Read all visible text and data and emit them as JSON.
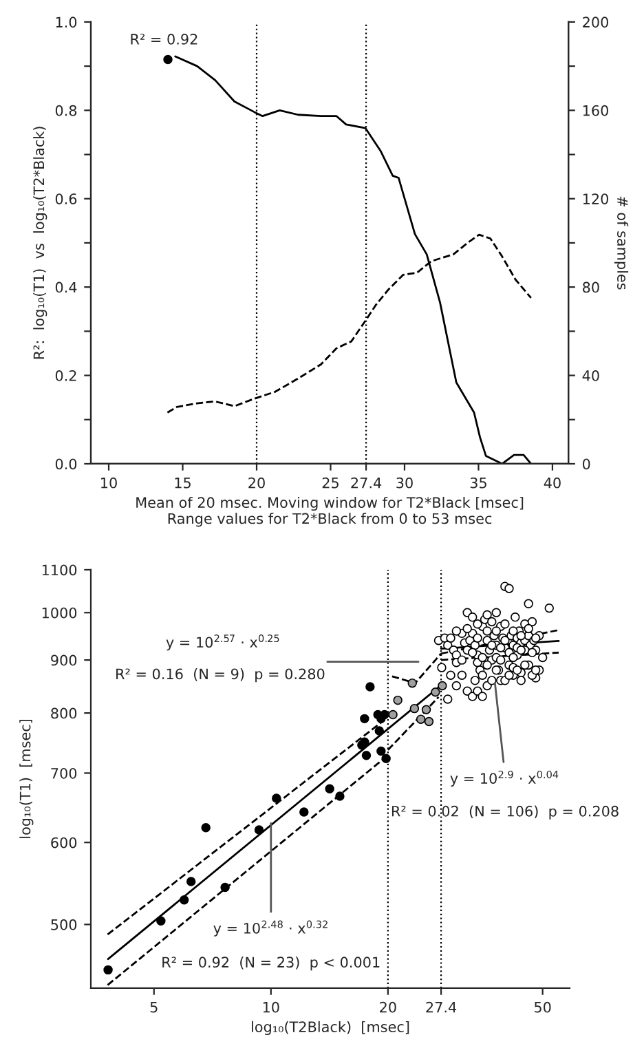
{
  "chart_data": [
    {
      "type": "line",
      "xlabel": "Mean of 20 msec. Moving window for T2*Black [msec]\nRange values for T2*Black from 0 to 53 msec",
      "ylabel": "R²:  log₁₀(T1)  vs  log₁₀(T2*Black)",
      "y2label": "# of samples",
      "xlim": [
        8.79,
        41.08
      ],
      "xticks": [
        10,
        15,
        20,
        25,
        27.4,
        30,
        35,
        40
      ],
      "ylim": [
        0,
        1
      ],
      "yticks": [
        {
          "value": 0,
          "label": "0.0"
        },
        {
          "value": 0.1,
          "label": null
        },
        {
          "value": 0.2,
          "label": "0.2"
        },
        {
          "value": 0.3,
          "label": null
        },
        {
          "value": 0.4,
          "label": "0.4"
        },
        {
          "value": 0.5,
          "label": null
        },
        {
          "value": 0.6,
          "label": "0.6"
        },
        {
          "value": 0.7,
          "label": null
        },
        {
          "value": 0.8,
          "label": "0.8"
        },
        {
          "value": 0.9,
          "label": null
        },
        {
          "value": 1,
          "label": "1.0"
        }
      ],
      "y2lim": [
        0,
        200
      ],
      "y2ticks": [
        0,
        {
          "value": 20,
          "label": null
        },
        40,
        {
          "value": 60,
          "label": null
        },
        80,
        {
          "value": 100,
          "label": null
        },
        120,
        {
          "value": 140,
          "label": null
        },
        160,
        {
          "value": 180,
          "label": null
        },
        200
      ],
      "ref_lines": [
        {
          "axis": "x",
          "value": 20,
          "color": "#000000",
          "line_style": "dotted"
        },
        {
          "axis": "x",
          "value": 27.4,
          "color": "#000000",
          "line_style": "dotted"
        }
      ],
      "annotations": [
        {
          "text": "R² = 0.92",
          "x": 14,
          "y": 0.915
        }
      ],
      "series": [
        {
          "color": "#000000",
          "line_style": "solid",
          "x": [
            14.5,
            15.98,
            17.2,
            18.5,
            19.85,
            20.4,
            21.56,
            22.8,
            24.35,
            25.4,
            26.05,
            27.35,
            28.4,
            29.2,
            29.6,
            30.7,
            31.5,
            32.4,
            33.5,
            34.7,
            35.1,
            35.5,
            36.6,
            37.4,
            38.05,
            38.55
          ],
          "values": [
            0.922,
            0.9,
            0.868,
            0.82,
            0.796,
            0.787,
            0.8,
            0.79,
            0.787,
            0.787,
            0.768,
            0.76,
            0.707,
            0.652,
            0.647,
            0.52,
            0.474,
            0.365,
            0.184,
            0.116,
            0.06,
            0.018,
            0.0,
            0.02,
            0.02,
            0.0
          ]
        },
        {
          "type": "scatter",
          "color": "#000000",
          "marker": "circle",
          "x": [
            14
          ],
          "values": [
            0.915
          ]
        },
        {
          "axis": "y2",
          "color": "#000000",
          "line_style": "dashed",
          "x": [
            13.97,
            14.6,
            15.98,
            17.2,
            18.5,
            19.85,
            21.25,
            22.8,
            24.35,
            25.4,
            26.4,
            27.35,
            28.07,
            28.9,
            29.9,
            30.85,
            31.8,
            33.3,
            34.26,
            35.04,
            35.8,
            36.6,
            37.5,
            38.55
          ],
          "values": [
            23.2,
            25.7,
            27.4,
            28.2,
            26.1,
            29.5,
            32.6,
            38.6,
            45.0,
            52.3,
            55.4,
            64.7,
            72,
            78.8,
            85.5,
            86.5,
            91.7,
            94.8,
            100,
            103.7,
            102,
            93.8,
            83.4,
            75.1
          ]
        }
      ]
    },
    {
      "type": "scatter",
      "xlabel": "log₁₀(T2Black)  [msec]",
      "ylabel": "log₁₀(T1)  [msec]",
      "log": "xy",
      "xlim": [
        3.44,
        58.7
      ],
      "xticks": [
        5,
        10,
        20,
        27.4,
        50
      ],
      "ylim": [
        434,
        1100
      ],
      "yticks": [
        500,
        600,
        700,
        800,
        900,
        1000,
        1100
      ],
      "ref_lines": [
        {
          "axis": "x",
          "value": 20,
          "color": "#000000",
          "line_style": "dotted"
        },
        {
          "axis": "x",
          "value": 27.4,
          "color": "#000000",
          "line_style": "dotted"
        }
      ],
      "annotations": [
        "y = 10$^{2.57}$ · x$^{0.25}$",
        "R² = 0.16  (N = 9)  p = 0.280",
        {
          "text": "y = 10$^{2.48}$ · x$^{0.32}$",
          "x": 10,
          "y": 626
        },
        "R² = 0.92  (N = 23)  p < 0.001",
        {
          "text": "y = 10$^{2.9}$ · x$^{0.04}$",
          "x": 37.7,
          "y": 855
        },
        "R² = 0.02  (N = 106)  p = 0.208"
      ],
      "series": [
        {
          "type": "line",
          "color": "#000000",
          "line_style": "solid",
          "x": [
            3.81,
            27.4
          ],
          "values": [
            463,
            851
          ]
        },
        {
          "type": "line",
          "color": "#000000",
          "line_style": "dashed",
          "x": [
            3.8,
            19.6
          ],
          "values": [
            489,
            788
          ]
        },
        {
          "type": "line",
          "color": "#000000",
          "line_style": "dashed",
          "x": [
            3.8,
            19.8
          ],
          "values": [
            437,
            726
          ]
        },
        {
          "type": "line",
          "color": "#000000",
          "line_style": "dashed",
          "x": [
            20.5,
            23.5,
            27.4
          ],
          "values": [
            868,
            855,
            913
          ]
        },
        {
          "type": "line",
          "color": "#000000",
          "line_style": "dashed",
          "x": [
            20,
            27
          ],
          "values": [
            737,
            829
          ]
        },
        {
          "type": "line",
          "color": "#000000",
          "line_style": "solid",
          "x": [
            27.4,
            55
          ],
          "values": [
            923,
            939
          ]
        },
        {
          "type": "line",
          "color": "#000000",
          "line_style": "dashed",
          "x": [
            27.4,
            55
          ],
          "values": [
            913,
            962
          ]
        },
        {
          "type": "line",
          "color": "#000000",
          "line_style": "dashed",
          "x": [
            27.4,
            55
          ],
          "values": [
            900,
            915
          ]
        },
        {
          "color": "#000000",
          "marker": "circle",
          "x": [
            3.81,
            5.21,
            5.98,
            6.23,
            6.8,
            7.62,
            9.32,
            10.33,
            12.16,
            14.16,
            15.04,
            17.13,
            17.41,
            17.6,
            17.41,
            17.99,
            18.84,
            19.0,
            19.2,
            19.51,
            19.78,
            19.6,
            19.2
          ],
          "values": [
            452,
            504,
            528,
            550,
            620,
            543,
            617,
            662,
            642,
            676,
            665,
            745,
            750,
            728,
            790,
            848,
            797,
            769,
            735,
            null,
            723,
            797,
            790
          ]
        },
        {
          "color": "#a0a0a0",
          "marker": "circle",
          "x": [
            20.6,
            21.2,
            23.1,
            23.4,
            24.3,
            25.1,
            25.5,
            26.5,
            27.6
          ],
          "values": [
            797,
            823,
            855,
            808,
            789,
            806,
            785,
            838,
            850
          ]
        },
        {
          "color": "#ffffff",
          "marker": "circle",
          "x": [
            27,
            28,
            28.5,
            29,
            29.5,
            30,
            30,
            31,
            31.5,
            32,
            32.5,
            33,
            33,
            33.5,
            34,
            34,
            34.5,
            35,
            35,
            35.5,
            36,
            36,
            36.5,
            37,
            37,
            37.5,
            38,
            38,
            38.5,
            39,
            39,
            39.5,
            40,
            40,
            41,
            41,
            41.5,
            42,
            42,
            42.5,
            43,
            43,
            43.5,
            44,
            44,
            45,
            45,
            46,
            46,
            46.5,
            47,
            47.5,
            48,
            48,
            49,
            49,
            50,
            52,
            27.5,
            28.5,
            30,
            31,
            32,
            33,
            33.5,
            34,
            35,
            36,
            37,
            38,
            39,
            40,
            41,
            42,
            43,
            44,
            45,
            46,
            47,
            48,
            31,
            32,
            33,
            34,
            35,
            36,
            37,
            38,
            39,
            40,
            41,
            42,
            43,
            44,
            45,
            46,
            47,
            48,
            29,
            30,
            32,
            34,
            36,
            38,
            40,
            42,
            44
          ],
          "values": [
            940,
            945,
            930,
            945,
            920,
            910,
            895,
            900,
            935,
            1000,
            940,
            990,
            955,
            930,
            910,
            895,
            880,
            870,
            970,
            985,
            960,
            940,
            920,
            900,
            980,
            950,
            930,
            905,
            880,
            860,
            970,
            945,
            925,
            1060,
            1055,
            890,
            950,
            930,
            870,
            990,
            945,
            910,
            960,
            935,
            875,
            940,
            975,
            1020,
            950,
            930,
            980,
            940,
            865,
            920,
            950,
            880,
            905,
            1010,
            885,
            825,
            850,
            870,
            840,
            830,
            860,
            840,
            830,
            850,
            860,
            880,
            900,
            860,
            870,
            885,
            880,
            860,
            920,
            890,
            870,
            880,
            955,
            920,
            915,
            945,
            905,
            890,
            930,
            960,
            925,
            940,
            915,
            960,
            925,
            950,
            890,
            965,
            915,
            945,
            870,
            960,
            965,
            975,
            995,
            1000,
            975,
            905,
            920
          ]
        }
      ]
    }
  ]
}
